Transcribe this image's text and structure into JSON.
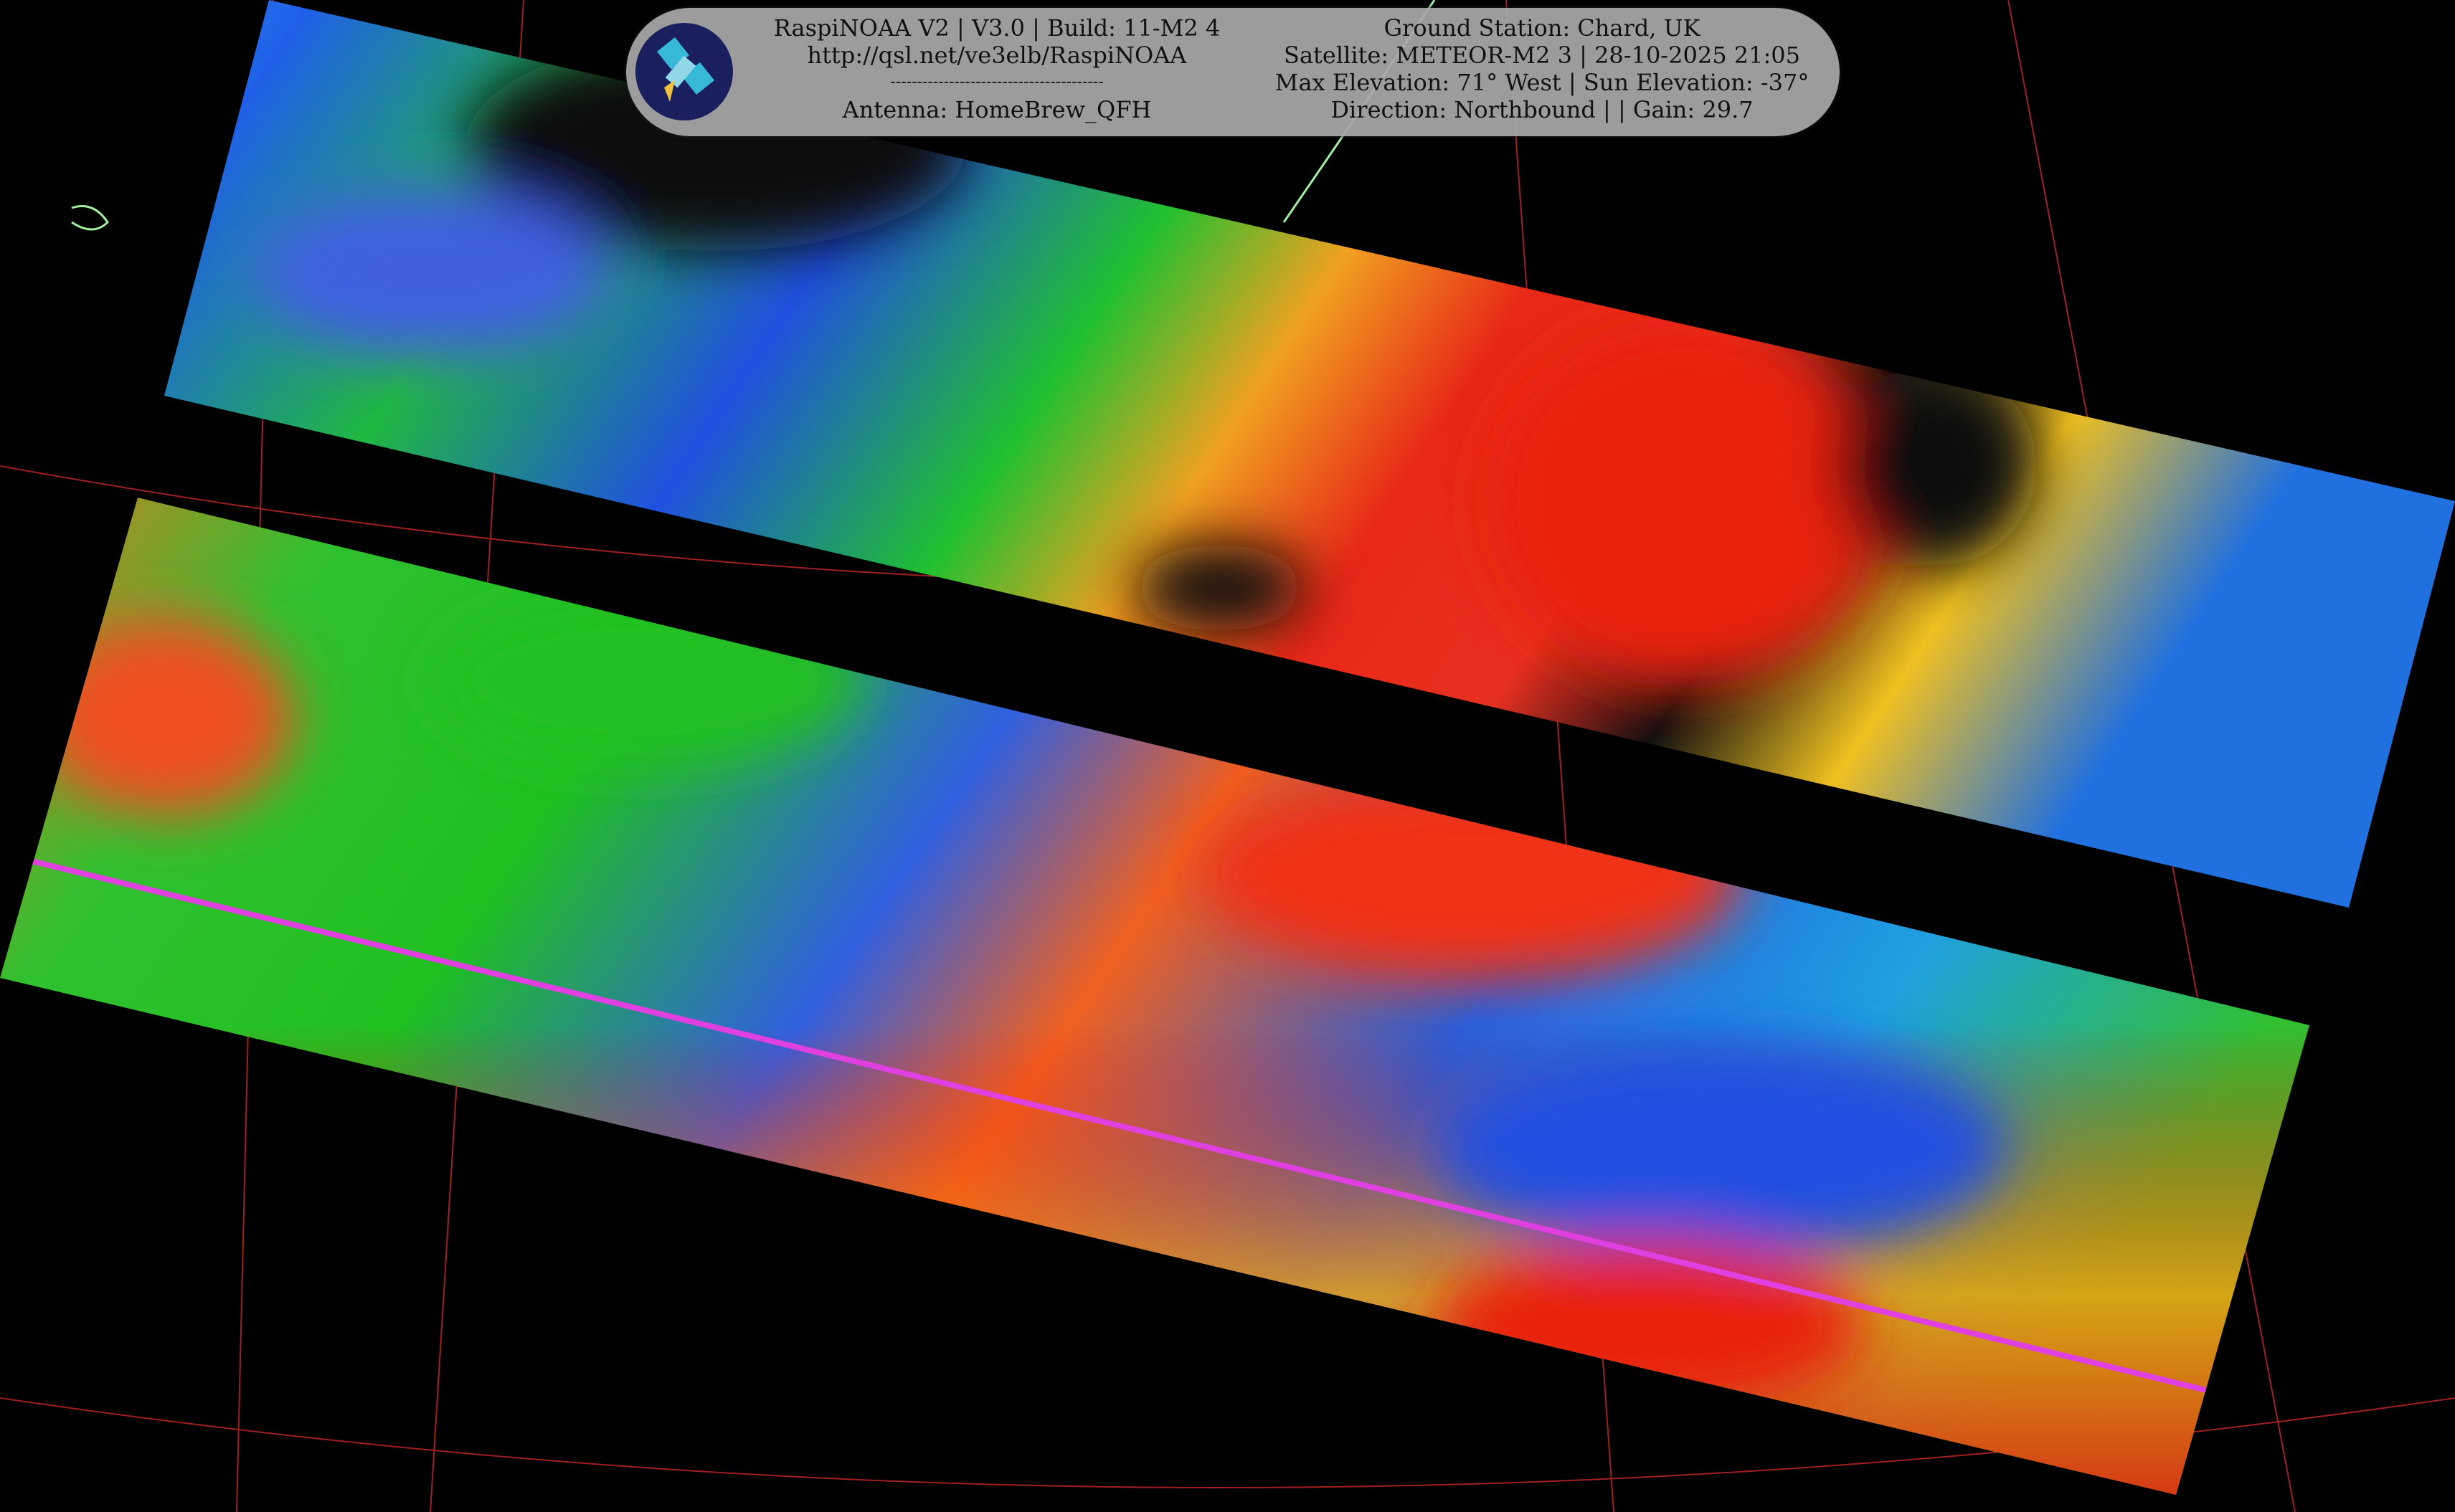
{
  "overlay": {
    "left_lines": [
      "RaspiNOAA V2 | V3.0 | Build: 11-M2 4",
      "http://qsl.net/ve3elb/RaspiNOAA",
      "----------------------------------------",
      "Antenna: HomeBrew_QFH"
    ],
    "right_lines": [
      "Ground Station: Chard, UK",
      "Satellite: METEOR-M2 3 | 28-10-2025 21:05",
      "Max Elevation: 71° West | Sun Elevation: -37°",
      "Direction: Northbound | | Gain: 29.7"
    ],
    "logo_icon": "satellite-icon"
  },
  "image": {
    "type": "satellite-infrared-false-color",
    "colors": {
      "cold": "#e8201a",
      "mid": "#f5e020",
      "warm": "#18c818",
      "ocean": "#2050e0",
      "graticule": "#a02020",
      "coastline": "#a0f0a0"
    }
  }
}
